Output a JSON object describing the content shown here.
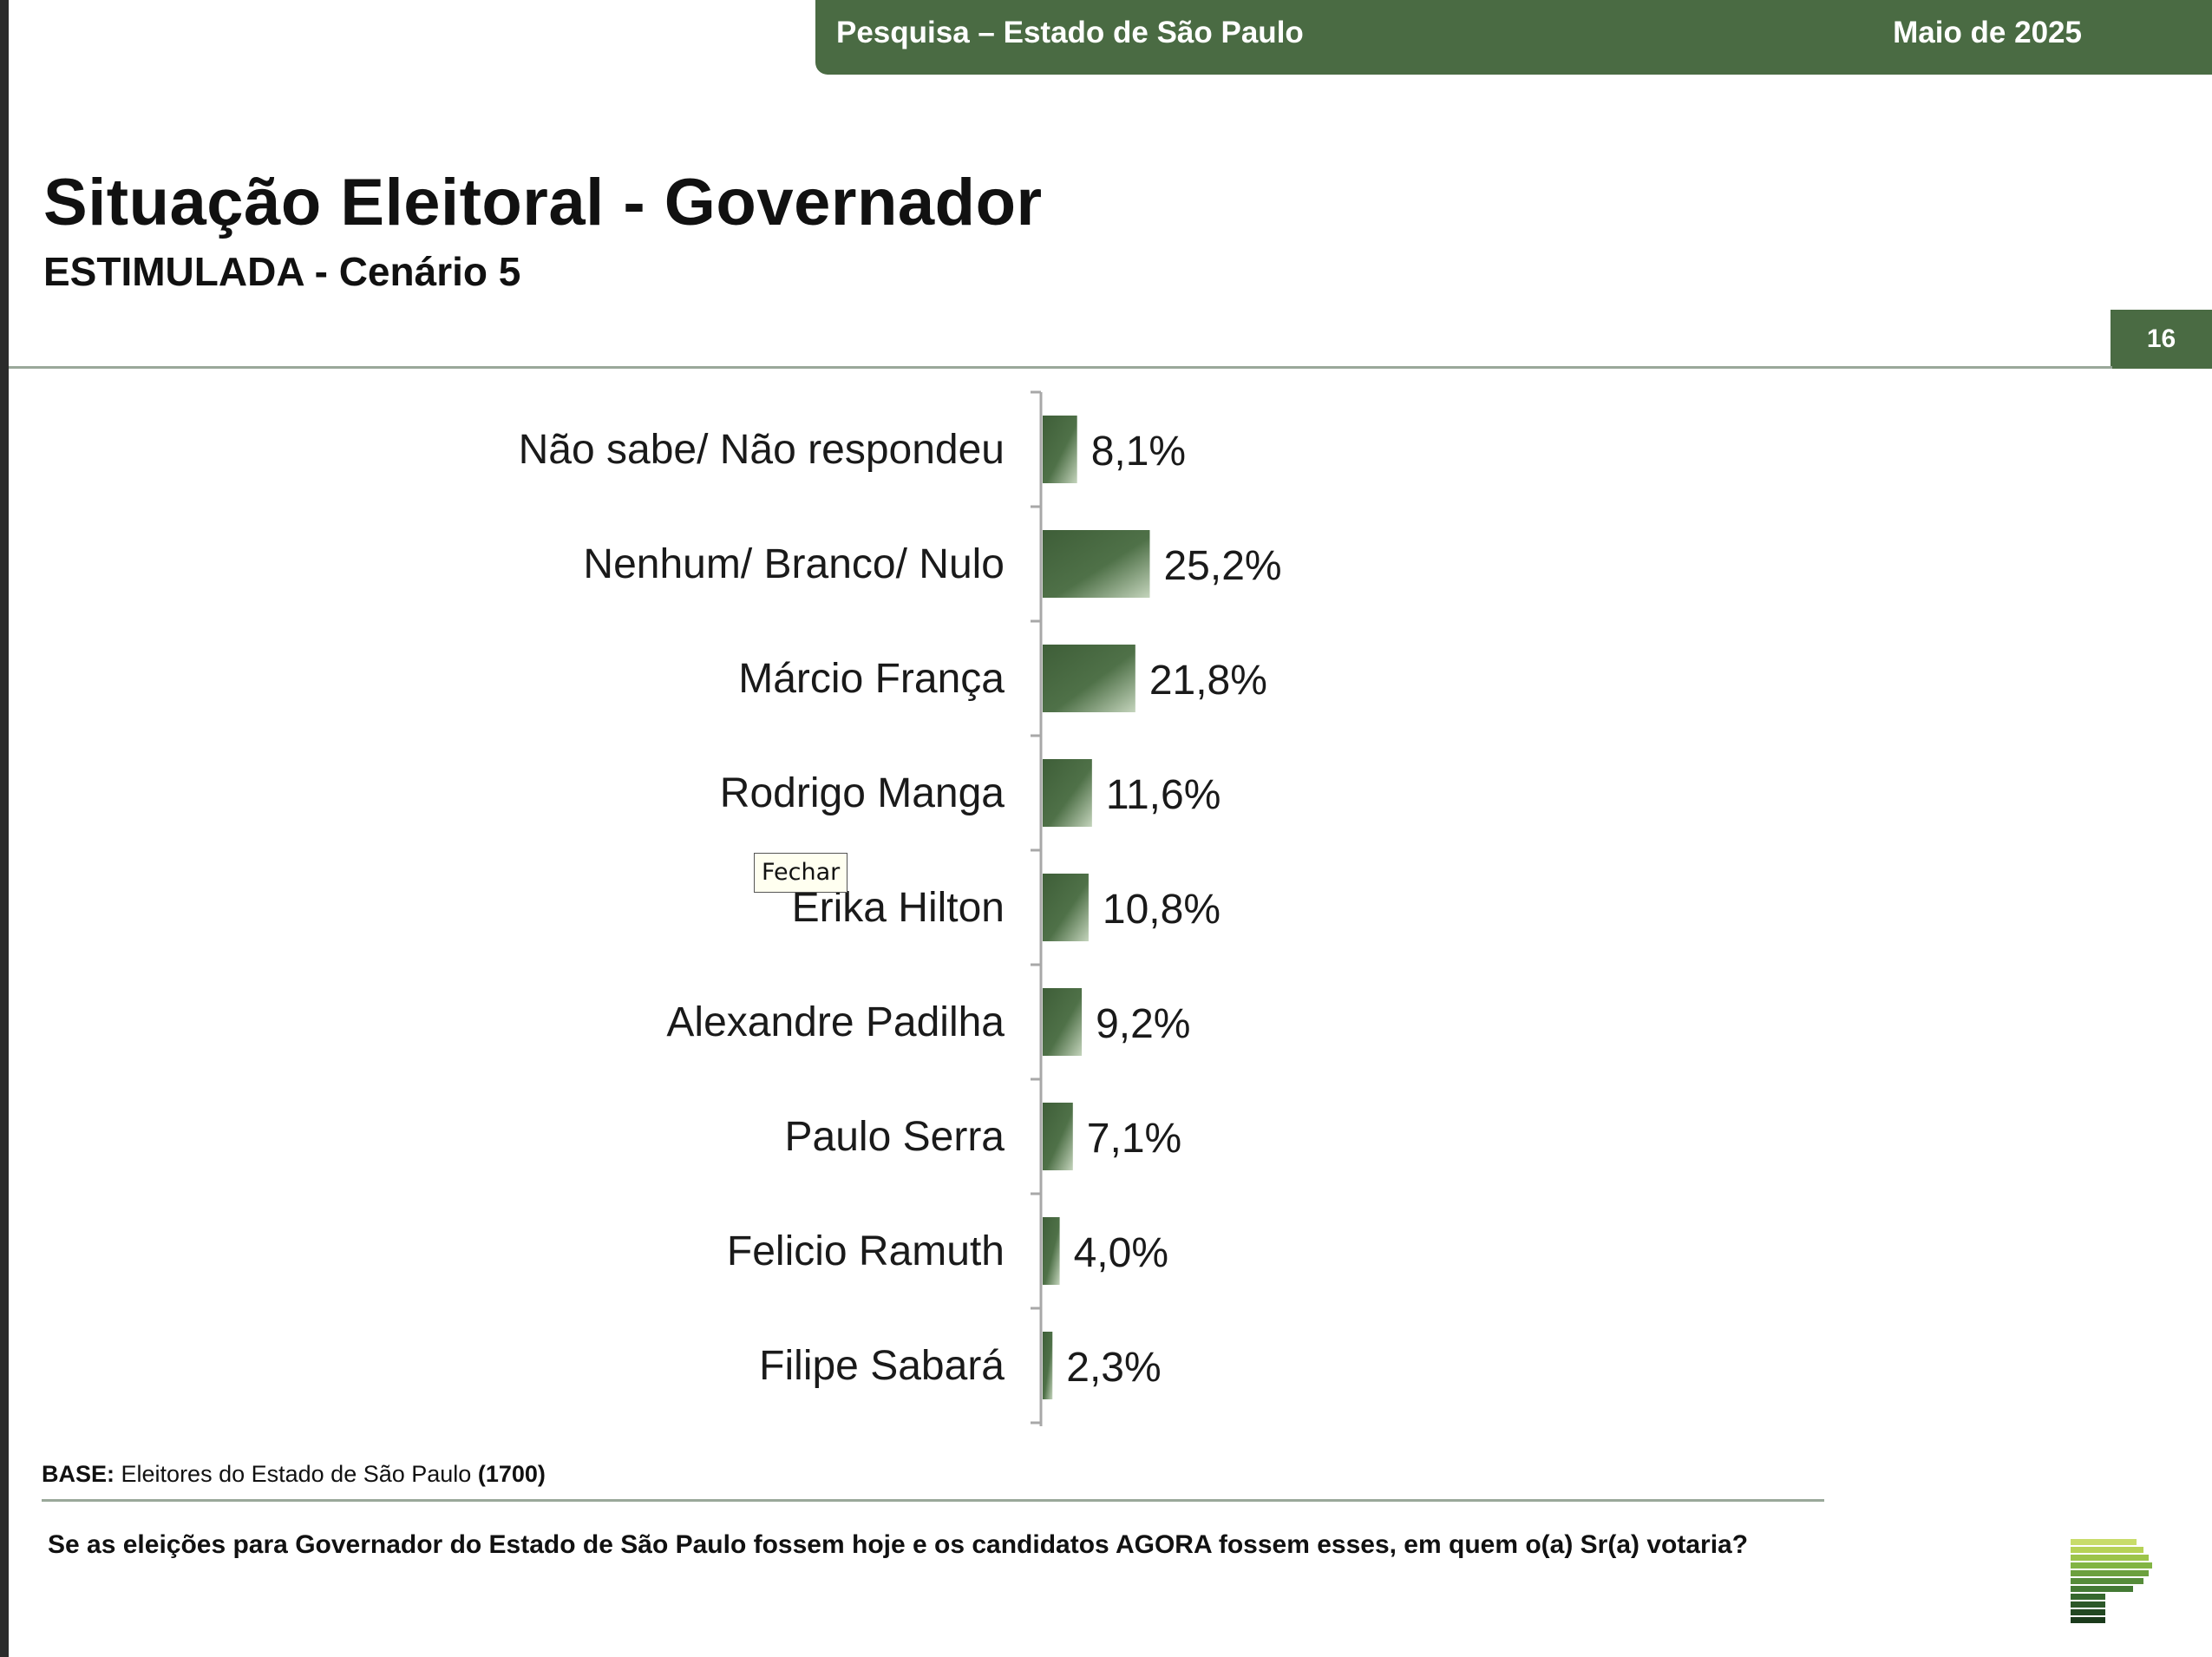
{
  "header": {
    "left_text": "Pesquisa – Estado de São Paulo",
    "right_text": "Maio de 2025"
  },
  "title": "Situação Eleitoral - Governador",
  "subtitle": "ESTIMULADA - Cenário 5",
  "page_number": "16",
  "chart_data": {
    "type": "bar",
    "orientation": "horizontal",
    "categories": [
      "Não sabe/ Não respondeu",
      "Nenhum/ Branco/ Nulo",
      "Márcio França",
      "Rodrigo Manga",
      "Erika Hilton",
      "Alexandre Padilha",
      "Paulo Serra",
      "Felicio Ramuth",
      "Filipe Sabará"
    ],
    "values": [
      8.1,
      25.2,
      21.8,
      11.6,
      10.8,
      9.2,
      7.1,
      4.0,
      2.3
    ],
    "value_labels": [
      "8,1%",
      "25,2%",
      "21,8%",
      "11,6%",
      "10,8%",
      "9,2%",
      "7,1%",
      "4,0%",
      "2,3%"
    ],
    "unit": "%",
    "bar_color": "#4a6b43",
    "bar_color_light": "#c4d4bc"
  },
  "footer": {
    "base_label": "BASE:",
    "base_text": "Eleitores do Estado de São Paulo",
    "base_count": "(1700)",
    "question": "Se as eleições para Governador do Estado de São Paulo fossem hoje e os candidatos AGORA fossem esses, em quem o(a) Sr(a) votaria?"
  },
  "tooltip": "Fechar"
}
